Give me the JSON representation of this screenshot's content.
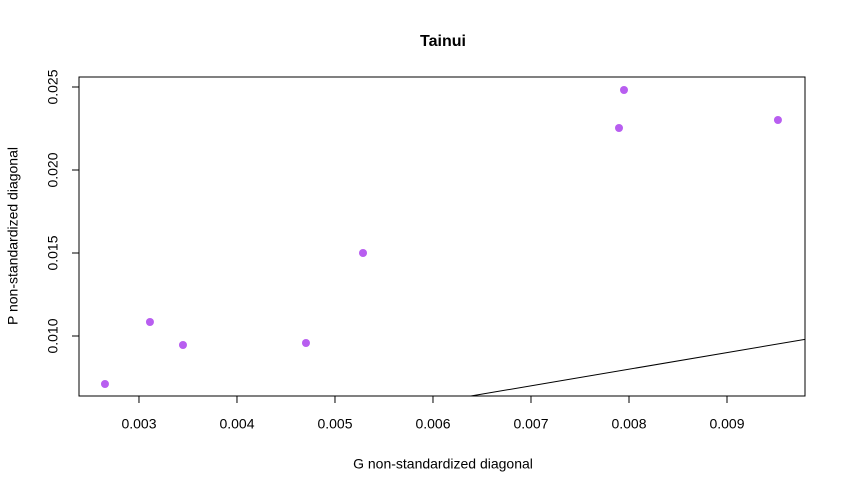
{
  "chart_data": {
    "type": "scatter",
    "title": "Tainui",
    "x_label": "G non-standardized diagonal",
    "y_label": "P non-standardized diagonal",
    "x": [
      0.002653,
      0.003112,
      0.003449,
      0.004704,
      0.005286,
      0.007898,
      0.007949,
      0.00952
    ],
    "values": [
      0.007108,
      0.010843,
      0.009458,
      0.009578,
      0.015,
      0.02253,
      0.024819,
      0.023012
    ],
    "color": "#b85ef0",
    "xlim": [
      0.002388,
      0.009796
    ],
    "ylim": [
      0.006386,
      0.025602
    ],
    "xticks": [
      0.003,
      0.004,
      0.005,
      0.006,
      0.007,
      0.008,
      0.009
    ],
    "yticks": [
      {
        "value": 0.01,
        "label": "0.010"
      },
      0.015,
      {
        "value": 0.02,
        "label": "0.020"
      },
      0.025
    ],
    "abline": {
      "intercept": 0,
      "slope": 1
    }
  }
}
